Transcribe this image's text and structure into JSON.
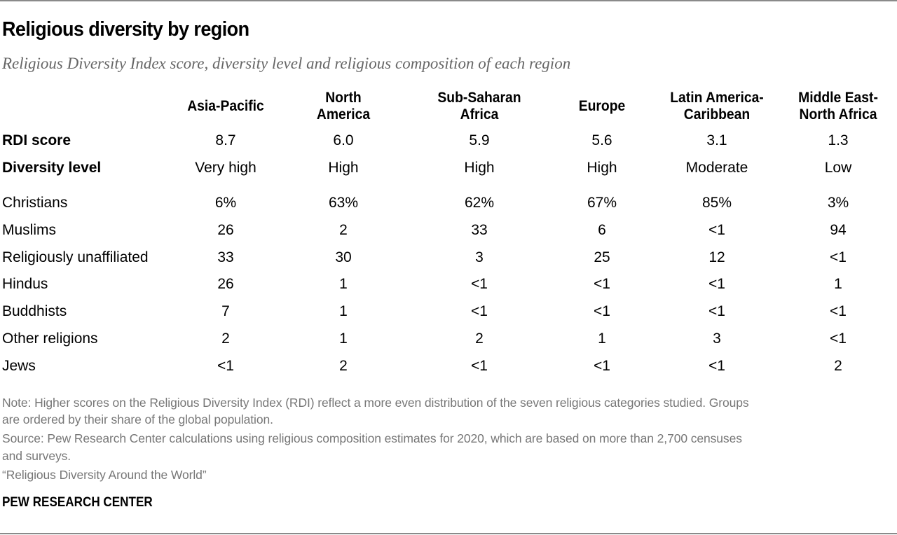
{
  "title": "Religious diversity by region",
  "subtitle": "Religious Diversity Index score, diversity level and religious composition of each region",
  "chart_data": {
    "type": "table",
    "title": "Religious diversity by region",
    "subtitle": "Religious Diversity Index score, diversity level and religious composition of each region",
    "columns": [
      {
        "line1": "Asia-Pacific",
        "line2": ""
      },
      {
        "line1": "North",
        "line2": "America"
      },
      {
        "line1": "Sub-Saharan",
        "line2": "Africa"
      },
      {
        "line1": "Europe",
        "line2": ""
      },
      {
        "line1": "Latin America-",
        "line2": "Caribbean"
      },
      {
        "line1": "Middle East-",
        "line2": "North Africa"
      }
    ],
    "rows": [
      {
        "label": "RDI score",
        "bold": true,
        "values": [
          "8.7",
          "6.0",
          "5.9",
          "5.6",
          "3.1",
          "1.3"
        ]
      },
      {
        "label": "Diversity level",
        "bold": true,
        "values": [
          "Very high",
          "High",
          "High",
          "High",
          "Moderate",
          "Low"
        ]
      },
      {
        "label": "Christians",
        "bold": false,
        "values": [
          "6%",
          "63%",
          "62%",
          "67%",
          "85%",
          "3%"
        ]
      },
      {
        "label": "Muslims",
        "bold": false,
        "values": [
          "26",
          "2",
          "33",
          "6",
          "<1",
          "94"
        ]
      },
      {
        "label": "Religiously unaffiliated",
        "bold": false,
        "values": [
          "33",
          "30",
          "3",
          "25",
          "12",
          "<1"
        ]
      },
      {
        "label": "Hindus",
        "bold": false,
        "values": [
          "26",
          "1",
          "<1",
          "<1",
          "<1",
          "1"
        ]
      },
      {
        "label": "Buddhists",
        "bold": false,
        "values": [
          "7",
          "1",
          "<1",
          "<1",
          "<1",
          "<1"
        ]
      },
      {
        "label": "Other religions",
        "bold": false,
        "values": [
          "2",
          "1",
          "2",
          "1",
          "3",
          "<1"
        ]
      },
      {
        "label": "Jews",
        "bold": false,
        "values": [
          "<1",
          "2",
          "<1",
          "<1",
          "<1",
          "2"
        ]
      }
    ]
  },
  "notes": {
    "note_line1": "Note: Higher scores on the Religious Diversity Index (RDI) reflect a more even distribution of the seven religious categories studied. Groups",
    "note_line2": "are ordered by their share of the global population.",
    "source_line1": "Source: Pew Research Center calculations using religious composition estimates for 2020, which are based on more than 2,700 censuses",
    "source_line2": "and surveys.",
    "report": "“Religious Diversity Around the World”"
  },
  "brand": "PEW RESEARCH CENTER"
}
